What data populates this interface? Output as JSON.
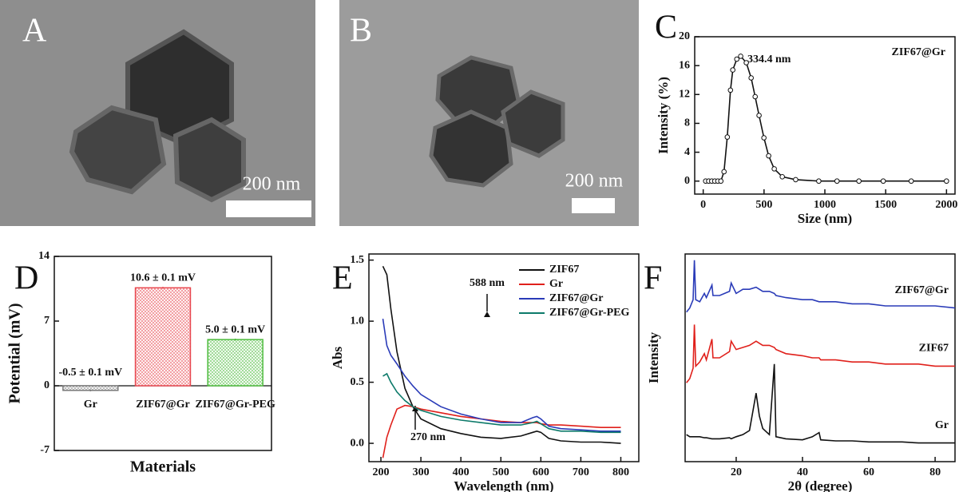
{
  "images": [
    {
      "label": "A",
      "scale_bar": "200 nm"
    },
    {
      "label": "B",
      "scale_bar": "200 nm"
    }
  ],
  "chart_data": [
    {
      "type": "line",
      "label": "C",
      "xlabel": "Size (nm)",
      "ylabel": "Intensity (%)",
      "markers": true,
      "legend": "upper right",
      "annotations": [
        "334.4 nm"
      ],
      "x": [
        20,
        45,
        70,
        95,
        120,
        145,
        171,
        198,
        224,
        243,
        276,
        308,
        354,
        394,
        427,
        459,
        499,
        538,
        584,
        650,
        760,
        950,
        1100,
        1280,
        1480,
        1710,
        2000
      ],
      "series": [
        {
          "name": "ZIF67@Gr",
          "color": "#111111",
          "values": [
            0,
            0,
            0,
            0,
            0,
            0,
            1.3,
            6.1,
            12.6,
            15.4,
            16.9,
            17.3,
            16.4,
            14.3,
            11.7,
            9.1,
            6.0,
            3.5,
            1.7,
            0.6,
            0.2,
            0,
            0,
            0,
            0,
            0,
            0
          ]
        }
      ],
      "xlim": [
        -70,
        2070
      ],
      "xticks": [
        0,
        500,
        1000,
        1500,
        2000
      ],
      "ylim": [
        -1.8,
        20
      ],
      "yticks": [
        0,
        4,
        8,
        12,
        16,
        20
      ]
    },
    {
      "type": "bar",
      "label": "D",
      "xlabel": "Materials",
      "ylabel": "Potential (mV)",
      "categories": [
        "Gr",
        "ZIF67@Gr",
        "ZIF67@Gr-PEG"
      ],
      "values": [
        -0.5,
        10.6,
        5.0
      ],
      "errors": [
        0.1,
        0.1,
        0.1
      ],
      "value_labels": [
        "-0.5 ± 0.1 mV",
        "10.6 ± 0.1 mV",
        "5.0 ± 0.1 mV"
      ],
      "colors": [
        "#7a7a7a",
        "#e8474f",
        "#4cbb3c"
      ],
      "ylim": [
        -7,
        14
      ],
      "yticks": [
        -7,
        0,
        7,
        14
      ]
    },
    {
      "type": "line",
      "label": "E",
      "xlabel": "Wavelength (nm)",
      "ylabel": "Abs",
      "legend": "upper right",
      "annotations": [
        "270 nm",
        "588 nm"
      ],
      "x": [
        205,
        215,
        225,
        240,
        260,
        280,
        300,
        350,
        400,
        450,
        500,
        550,
        580,
        590,
        600,
        620,
        650,
        700,
        750,
        800
      ],
      "series": [
        {
          "name": "ZIF67",
          "color": "#111111",
          "values": [
            1.45,
            1.38,
            1.1,
            0.75,
            0.45,
            0.3,
            0.2,
            0.12,
            0.08,
            0.05,
            0.04,
            0.06,
            0.09,
            0.1,
            0.09,
            0.04,
            0.02,
            0.01,
            0.01,
            0.0
          ]
        },
        {
          "name": "Gr",
          "color": "#e0201b",
          "values": [
            -0.12,
            0.05,
            0.15,
            0.28,
            0.31,
            0.3,
            0.28,
            0.25,
            0.22,
            0.2,
            0.18,
            0.17,
            0.17,
            0.17,
            0.16,
            0.15,
            0.15,
            0.14,
            0.13,
            0.13
          ]
        },
        {
          "name": "ZIF67@Gr",
          "color": "#2a3bb8",
          "values": [
            1.02,
            0.8,
            0.72,
            0.65,
            0.55,
            0.47,
            0.4,
            0.3,
            0.24,
            0.2,
            0.17,
            0.17,
            0.21,
            0.22,
            0.2,
            0.14,
            0.12,
            0.11,
            0.1,
            0.1
          ]
        },
        {
          "name": "ZIF67@Gr-PEG",
          "color": "#0d7a6a",
          "values": [
            0.55,
            0.57,
            0.5,
            0.42,
            0.35,
            0.3,
            0.27,
            0.22,
            0.19,
            0.17,
            0.15,
            0.15,
            0.17,
            0.18,
            0.16,
            0.12,
            0.1,
            0.1,
            0.09,
            0.09
          ]
        }
      ],
      "xlim": [
        170,
        845
      ],
      "xticks": [
        200,
        300,
        400,
        500,
        600,
        700,
        800
      ],
      "ylim": [
        -0.15,
        1.55
      ],
      "yticks": [
        {
          "value": 0,
          "label": "0.0"
        },
        0.5,
        {
          "value": 1,
          "label": "1.0"
        },
        1.5
      ]
    },
    {
      "type": "line",
      "label": "F",
      "xlabel": "2θ (degree)",
      "ylabel": "Intensity",
      "legend": "inline",
      "x": [
        5,
        6,
        7,
        7.4,
        7.8,
        9,
        10.4,
        11,
        12.7,
        13,
        15,
        18,
        18.5,
        20,
        22,
        24,
        26,
        27,
        28,
        30,
        31.5,
        32,
        35,
        40,
        43,
        45,
        45.5,
        50,
        55,
        60,
        65,
        70,
        75,
        80,
        86
      ],
      "series": [
        {
          "name": "ZIF67@Gr",
          "color": "#2a3bb8",
          "values": [
            72,
            74,
            78,
            97,
            78,
            77,
            81,
            79,
            85,
            80,
            80,
            82,
            86,
            81,
            83,
            83,
            84,
            83,
            82,
            82,
            81,
            80,
            79,
            78,
            78,
            77,
            77,
            77,
            76,
            76,
            75,
            75,
            75,
            75,
            74
          ]
        },
        {
          "name": "ZIF67",
          "color": "#e0201b",
          "values": [
            38,
            40,
            45,
            66,
            46,
            48,
            52,
            49,
            59,
            50,
            50,
            53,
            58,
            54,
            55,
            56,
            58,
            57,
            56,
            56,
            55,
            54,
            52,
            51,
            50,
            50,
            49,
            49,
            48,
            48,
            47,
            47,
            47,
            46,
            46
          ]
        },
        {
          "name": "Gr",
          "color": "#111111",
          "values": [
            13,
            12,
            12,
            12,
            12,
            12,
            11.5,
            11.5,
            11,
            11,
            11,
            11.5,
            11,
            12,
            13,
            15,
            33,
            22,
            16,
            13,
            47,
            12,
            11,
            10.5,
            12,
            14,
            10.5,
            10,
            10,
            9.5,
            9.5,
            9.5,
            9,
            9,
            9
          ]
        }
      ],
      "xlim": [
        4.6,
        86
      ],
      "xticks": [
        20,
        40,
        60,
        80
      ],
      "ylim": [
        0,
        100
      ]
    }
  ]
}
